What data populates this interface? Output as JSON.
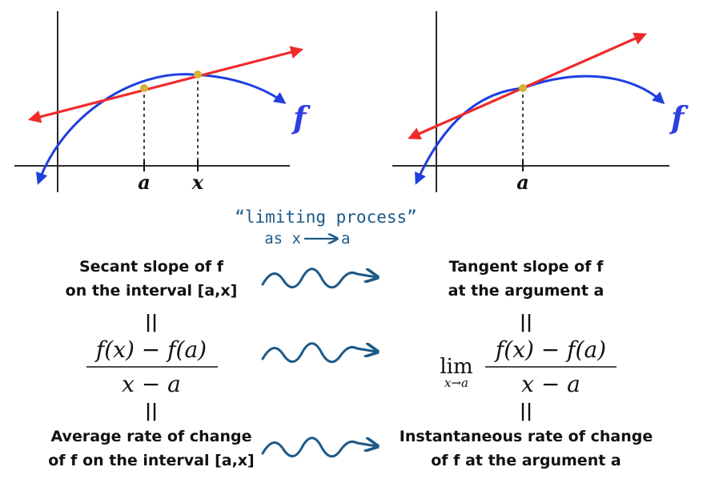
{
  "left_graph": {
    "function_label": "f",
    "tick_labels": [
      "a",
      "x"
    ]
  },
  "right_graph": {
    "function_label": "f",
    "tick_labels": [
      "a"
    ]
  },
  "limiting_process": {
    "line1": "“limiting process”",
    "line2_prefix": "as x",
    "line2_suffix": "a"
  },
  "rows": [
    {
      "left": [
        "Secant slope of f",
        "on the interval [a,x]"
      ],
      "right": [
        "Tangent slope of f",
        "at the argument a"
      ]
    },
    {
      "left_formula": {
        "numerator": "f(x) − f(a)",
        "denominator": "x − a"
      },
      "right_formula": {
        "operator": "lim",
        "subscript": "x→a",
        "numerator": "f(x) − f(a)",
        "denominator": "x − a"
      }
    },
    {
      "left": [
        "Average rate of change",
        "of f on the interval [a,x]"
      ],
      "right": [
        "Instantaneous rate of change",
        "of f at the argument a"
      ]
    }
  ],
  "equals_symbol": "||",
  "colors": {
    "curve": "#1f3fe0",
    "line": "#ee2b2b",
    "point": "#d4b43c",
    "squiggle": "#1d5a88",
    "axis": "#111111"
  }
}
